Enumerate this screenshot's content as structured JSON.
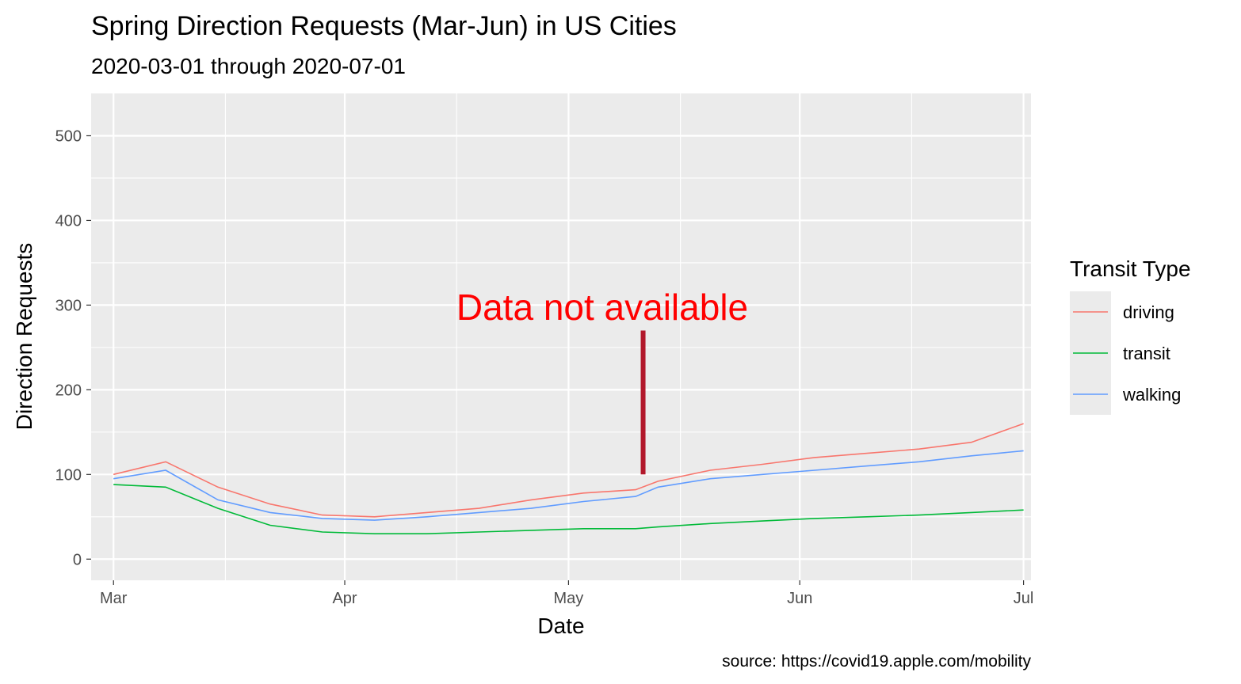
{
  "chart_data": {
    "type": "line",
    "title": "Spring Direction Requests (Mar-Jun) in US Cities",
    "subtitle": "2020-03-01 through 2020-07-01",
    "xlabel": "Date",
    "ylabel": "Direction Requests",
    "caption": "source: https://covid19.apple.com/mobility",
    "xlim": [
      "2020-02-27",
      "2020-07-02"
    ],
    "ylim": [
      -25,
      550
    ],
    "x_ticks": [
      {
        "date": "2020-03-01",
        "label": "Mar"
      },
      {
        "date": "2020-04-01",
        "label": "Apr"
      },
      {
        "date": "2020-05-01",
        "label": "May"
      },
      {
        "date": "2020-06-01",
        "label": "Jun"
      },
      {
        "date": "2020-07-01",
        "label": "Jul"
      }
    ],
    "y_ticks": [
      0,
      100,
      200,
      300,
      400,
      500
    ],
    "grid": true,
    "legend": {
      "title": "Transit Type",
      "position": "right"
    },
    "series": [
      {
        "name": "driving",
        "color": "#F8766D",
        "x": [
          "2020-03-01",
          "2020-03-08",
          "2020-03-15",
          "2020-03-22",
          "2020-03-29",
          "2020-04-05",
          "2020-04-12",
          "2020-04-19",
          "2020-04-26",
          "2020-05-03",
          "2020-05-10",
          "2020-05-13",
          "2020-05-20",
          "2020-05-27",
          "2020-06-03",
          "2020-06-10",
          "2020-06-17",
          "2020-06-24",
          "2020-07-01"
        ],
        "y": [
          100,
          115,
          85,
          65,
          52,
          50,
          55,
          60,
          70,
          78,
          82,
          92,
          105,
          112,
          120,
          125,
          130,
          138,
          160
        ]
      },
      {
        "name": "transit",
        "color": "#00BA38",
        "x": [
          "2020-03-01",
          "2020-03-08",
          "2020-03-15",
          "2020-03-22",
          "2020-03-29",
          "2020-04-05",
          "2020-04-12",
          "2020-04-19",
          "2020-04-26",
          "2020-05-03",
          "2020-05-10",
          "2020-05-13",
          "2020-05-20",
          "2020-05-27",
          "2020-06-03",
          "2020-06-10",
          "2020-06-17",
          "2020-06-24",
          "2020-07-01"
        ],
        "y": [
          88,
          85,
          60,
          40,
          32,
          30,
          30,
          32,
          34,
          36,
          36,
          38,
          42,
          45,
          48,
          50,
          52,
          55,
          58
        ]
      },
      {
        "name": "walking",
        "color": "#619CFF",
        "x": [
          "2020-03-01",
          "2020-03-08",
          "2020-03-15",
          "2020-03-22",
          "2020-03-29",
          "2020-04-05",
          "2020-04-12",
          "2020-04-19",
          "2020-04-26",
          "2020-05-03",
          "2020-05-10",
          "2020-05-13",
          "2020-05-20",
          "2020-05-27",
          "2020-06-03",
          "2020-06-10",
          "2020-06-17",
          "2020-06-24",
          "2020-07-01"
        ],
        "y": [
          95,
          105,
          70,
          55,
          48,
          46,
          50,
          55,
          60,
          68,
          74,
          85,
          95,
          100,
          105,
          110,
          115,
          122,
          128
        ]
      }
    ],
    "annotations": [
      {
        "text": "Data not available",
        "color": "#FF0000"
      },
      {
        "type": "segment",
        "x": "2020-05-11",
        "y_from": 100,
        "y_to": 270,
        "color": "#B2182B"
      }
    ]
  }
}
